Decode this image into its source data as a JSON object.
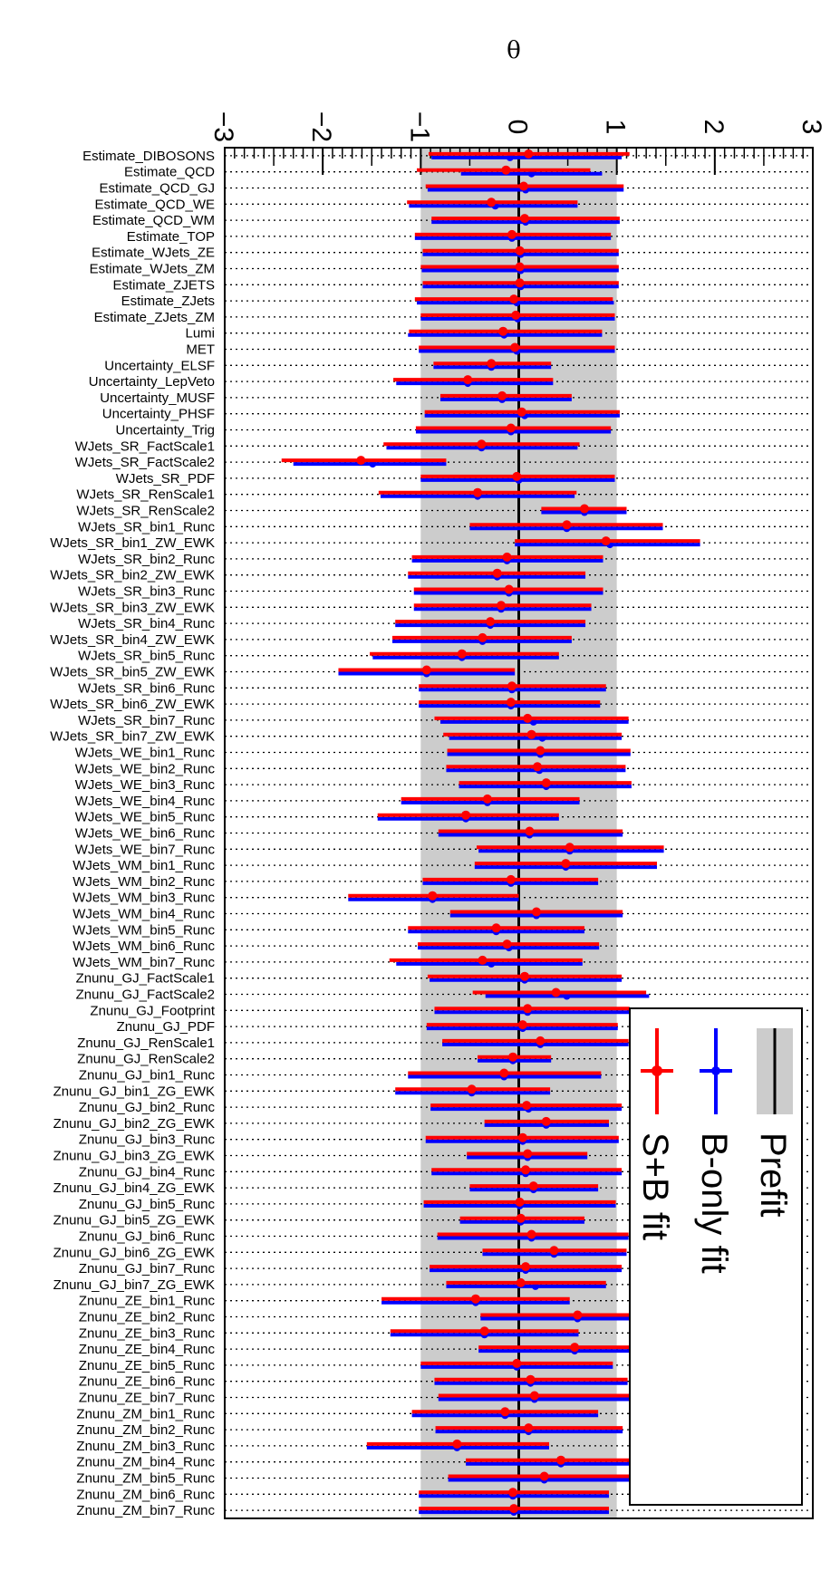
{
  "colors": {
    "prefit_band": "#cccccc",
    "prefit_line": "#000000",
    "bonly": "#0000ff",
    "splusb": "#ff0000"
  },
  "chart_data": {
    "type": "scatter",
    "title": "",
    "xlabel": "θ",
    "ylabel": "",
    "xlim": [
      -3,
      3
    ],
    "xticks": [
      "−3",
      "−2",
      "−1",
      "0",
      "1",
      "2",
      "3"
    ],
    "grid": true,
    "legend": {
      "position": "bottom-right",
      "entries": [
        "Prefit",
        "B-only fit",
        "S+B fit"
      ]
    },
    "prefit": {
      "center": 0,
      "band": [
        -1,
        1
      ]
    },
    "parameters": [
      "Estimate_DIBOSONS",
      "Estimate_QCD",
      "Estimate_QCD_GJ",
      "Estimate_QCD_WE",
      "Estimate_QCD_WM",
      "Estimate_TOP",
      "Estimate_WJets_ZE",
      "Estimate_WJets_ZM",
      "Estimate_ZJETS",
      "Estimate_ZJets",
      "Estimate_ZJets_ZM",
      "Lumi",
      "MET",
      "Uncertainty_ELSF",
      "Uncertainty_LepVeto",
      "Uncertainty_MUSF",
      "Uncertainty_PHSF",
      "Uncertainty_Trig",
      "WJets_SR_FactScale1",
      "WJets_SR_FactScale2",
      "WJets_SR_PDF",
      "WJets_SR_RenScale1",
      "WJets_SR_RenScale2",
      "WJets_SR_bin1_Runc",
      "WJets_SR_bin1_ZW_EWK",
      "WJets_SR_bin2_Runc",
      "WJets_SR_bin2_ZW_EWK",
      "WJets_SR_bin3_Runc",
      "WJets_SR_bin3_ZW_EWK",
      "WJets_SR_bin4_Runc",
      "WJets_SR_bin4_ZW_EWK",
      "WJets_SR_bin5_Runc",
      "WJets_SR_bin5_ZW_EWK",
      "WJets_SR_bin6_Runc",
      "WJets_SR_bin6_ZW_EWK",
      "WJets_SR_bin7_Runc",
      "WJets_SR_bin7_ZW_EWK",
      "WJets_WE_bin1_Runc",
      "WJets_WE_bin2_Runc",
      "WJets_WE_bin3_Runc",
      "WJets_WE_bin4_Runc",
      "WJets_WE_bin5_Runc",
      "WJets_WE_bin6_Runc",
      "WJets_WE_bin7_Runc",
      "WJets_WM_bin1_Runc",
      "WJets_WM_bin2_Runc",
      "WJets_WM_bin3_Runc",
      "WJets_WM_bin4_Runc",
      "WJets_WM_bin5_Runc",
      "WJets_WM_bin6_Runc",
      "WJets_WM_bin7_Runc",
      "Znunu_GJ_FactScale1",
      "Znunu_GJ_FactScale2",
      "Znunu_GJ_Footprint",
      "Znunu_GJ_PDF",
      "Znunu_GJ_RenScale1",
      "Znunu_GJ_RenScale2",
      "Znunu_GJ_bin1_Runc",
      "Znunu_GJ_bin1_ZG_EWK",
      "Znunu_GJ_bin2_Runc",
      "Znunu_GJ_bin2_ZG_EWK",
      "Znunu_GJ_bin3_Runc",
      "Znunu_GJ_bin3_ZG_EWK",
      "Znunu_GJ_bin4_Runc",
      "Znunu_GJ_bin4_ZG_EWK",
      "Znunu_GJ_bin5_Runc",
      "Znunu_GJ_bin5_ZG_EWK",
      "Znunu_GJ_bin6_Runc",
      "Znunu_GJ_bin6_ZG_EWK",
      "Znunu_GJ_bin7_Runc",
      "Znunu_GJ_bin7_ZG_EWK",
      "Znunu_ZE_bin1_Runc",
      "Znunu_ZE_bin2_Runc",
      "Znunu_ZE_bin3_Runc",
      "Znunu_ZE_bin4_Runc",
      "Znunu_ZE_bin5_Runc",
      "Znunu_ZE_bin6_Runc",
      "Znunu_ZE_bin7_Runc",
      "Znunu_ZM_bin1_Runc",
      "Znunu_ZM_bin2_Runc",
      "Znunu_ZM_bin3_Runc",
      "Znunu_ZM_bin4_Runc",
      "Znunu_ZM_bin5_Runc",
      "Znunu_ZM_bin6_Runc",
      "Znunu_ZM_bin7_Runc"
    ],
    "series": [
      {
        "name": "B-only fit",
        "values": [
          [
            -0.09,
            -0.89,
            1.05
          ],
          [
            0.13,
            -0.59,
            0.85
          ],
          [
            0.07,
            -0.93,
            1.07
          ],
          [
            -0.24,
            -1.12,
            0.6
          ],
          [
            0.07,
            -0.89,
            1.03
          ],
          [
            -0.07,
            -1.06,
            0.94
          ],
          [
            0.02,
            -0.98,
            1.02
          ],
          [
            0.02,
            -0.99,
            1.02
          ],
          [
            0.02,
            -0.98,
            1.02
          ],
          [
            -0.02,
            -1.04,
            0.97
          ],
          [
            -0.01,
            -1.0,
            0.98
          ],
          [
            -0.15,
            -1.13,
            0.85
          ],
          [
            -0.02,
            -1.02,
            0.98
          ],
          [
            -0.28,
            -0.87,
            0.33
          ],
          [
            -0.52,
            -1.25,
            0.35
          ],
          [
            -0.17,
            -0.8,
            0.54
          ],
          [
            0.06,
            -0.96,
            1.03
          ],
          [
            -0.08,
            -1.05,
            0.94
          ],
          [
            -0.38,
            -1.35,
            0.6
          ],
          [
            -1.49,
            -2.3,
            -0.74
          ],
          [
            0.0,
            -1.0,
            0.98
          ],
          [
            -0.42,
            -1.41,
            0.57
          ],
          [
            0.67,
            0.23,
            1.1
          ],
          [
            0.49,
            -0.5,
            1.47
          ],
          [
            0.93,
            -0.04,
            1.85
          ],
          [
            -0.12,
            -1.09,
            0.86
          ],
          [
            -0.22,
            -1.13,
            0.68
          ],
          [
            -0.1,
            -1.07,
            0.86
          ],
          [
            -0.18,
            -1.07,
            0.74
          ],
          [
            -0.29,
            -1.26,
            0.68
          ],
          [
            -0.37,
            -1.29,
            0.54
          ],
          [
            -0.58,
            -1.49,
            0.41
          ],
          [
            -0.94,
            -1.84,
            -0.04
          ],
          [
            -0.07,
            -1.02,
            0.89
          ],
          [
            -0.08,
            -1.02,
            0.83
          ],
          [
            0.15,
            -0.8,
            1.12
          ],
          [
            0.24,
            -0.71,
            1.05
          ],
          [
            0.22,
            -0.73,
            1.14
          ],
          [
            0.21,
            -0.74,
            1.09
          ],
          [
            0.28,
            -0.61,
            1.15
          ],
          [
            -0.32,
            -1.2,
            0.62
          ],
          [
            -0.54,
            -1.44,
            0.41
          ],
          [
            0.11,
            -0.82,
            1.06
          ],
          [
            0.52,
            -0.41,
            1.48
          ],
          [
            0.48,
            -0.45,
            1.41
          ],
          [
            -0.08,
            -0.98,
            0.81
          ],
          [
            -0.88,
            -1.74,
            0.0
          ],
          [
            0.18,
            -0.7,
            1.06
          ],
          [
            -0.23,
            -1.13,
            0.67
          ],
          [
            -0.1,
            -1.03,
            0.82
          ],
          [
            -0.28,
            -1.25,
            0.65
          ],
          [
            0.06,
            -0.91,
            1.05
          ],
          [
            0.49,
            -0.34,
            1.33
          ],
          [
            0.09,
            -0.86,
            1.13
          ],
          [
            0.04,
            -0.94,
            1.01
          ],
          [
            0.22,
            -0.78,
            1.12
          ],
          [
            -0.06,
            -0.42,
            0.33
          ],
          [
            -0.15,
            -1.13,
            0.84
          ],
          [
            -0.48,
            -1.26,
            0.32
          ],
          [
            0.1,
            -0.9,
            1.05
          ],
          [
            0.28,
            -0.35,
            0.92
          ],
          [
            0.04,
            -0.95,
            1.02
          ],
          [
            0.09,
            -0.53,
            0.7
          ],
          [
            0.07,
            -0.89,
            1.05
          ],
          [
            0.15,
            -0.5,
            0.81
          ],
          [
            0.01,
            -0.97,
            0.99
          ],
          [
            0.02,
            -0.6,
            0.67
          ],
          [
            0.13,
            -0.83,
            1.12
          ],
          [
            0.36,
            -0.37,
            1.1
          ],
          [
            0.07,
            -0.91,
            1.05
          ],
          [
            0.17,
            -0.74,
            0.89
          ],
          [
            -0.44,
            -1.4,
            0.52
          ],
          [
            0.6,
            -0.39,
            1.17
          ],
          [
            -0.35,
            -1.31,
            0.61
          ],
          [
            0.57,
            -0.41,
            1.15
          ],
          [
            -0.02,
            -1.0,
            0.96
          ],
          [
            0.12,
            -0.86,
            1.11
          ],
          [
            0.16,
            -0.82,
            1.14
          ],
          [
            -0.14,
            -1.09,
            0.81
          ],
          [
            0.1,
            -0.85,
            1.06
          ],
          [
            -0.63,
            -1.55,
            0.31
          ],
          [
            0.43,
            -0.54,
            1.22
          ],
          [
            0.26,
            -0.72,
            1.19
          ],
          [
            -0.06,
            -1.02,
            0.92
          ],
          [
            -0.05,
            -1.02,
            0.92
          ]
        ]
      },
      {
        "name": "S+B fit",
        "values": [
          [
            0.1,
            -0.92,
            1.13
          ],
          [
            -0.13,
            -1.04,
            0.73
          ],
          [
            0.05,
            -0.95,
            1.07
          ],
          [
            -0.28,
            -1.14,
            0.6
          ],
          [
            0.06,
            -0.89,
            1.03
          ],
          [
            -0.07,
            -1.06,
            0.94
          ],
          [
            0.01,
            -0.98,
            1.02
          ],
          [
            0.01,
            -1.0,
            1.02
          ],
          [
            0.01,
            -0.98,
            1.02
          ],
          [
            -0.05,
            -1.06,
            0.96
          ],
          [
            -0.03,
            -1.0,
            0.98
          ],
          [
            -0.16,
            -1.12,
            0.85
          ],
          [
            -0.04,
            -1.02,
            0.98
          ],
          [
            -0.28,
            -0.87,
            0.33
          ],
          [
            -0.52,
            -1.28,
            0.35
          ],
          [
            -0.17,
            -0.8,
            0.54
          ],
          [
            0.03,
            -0.96,
            1.03
          ],
          [
            -0.08,
            -1.05,
            0.94
          ],
          [
            -0.38,
            -1.38,
            0.62
          ],
          [
            -1.61,
            -2.42,
            -0.74
          ],
          [
            -0.02,
            -1.0,
            0.98
          ],
          [
            -0.42,
            -1.43,
            0.59
          ],
          [
            0.67,
            0.23,
            1.1
          ],
          [
            0.49,
            -0.5,
            1.47
          ],
          [
            0.89,
            -0.04,
            1.85
          ],
          [
            -0.12,
            -1.09,
            0.86
          ],
          [
            -0.22,
            -1.13,
            0.68
          ],
          [
            -0.1,
            -1.07,
            0.86
          ],
          [
            -0.18,
            -1.07,
            0.74
          ],
          [
            -0.29,
            -1.26,
            0.68
          ],
          [
            -0.37,
            -1.29,
            0.54
          ],
          [
            -0.58,
            -1.52,
            0.41
          ],
          [
            -0.94,
            -1.84,
            -0.04
          ],
          [
            -0.07,
            -1.02,
            0.89
          ],
          [
            -0.08,
            -1.02,
            0.83
          ],
          [
            0.09,
            -0.86,
            1.12
          ],
          [
            0.13,
            -0.77,
            1.05
          ],
          [
            0.22,
            -0.73,
            1.14
          ],
          [
            0.19,
            -0.74,
            1.09
          ],
          [
            0.28,
            -0.61,
            1.15
          ],
          [
            -0.32,
            -1.2,
            0.62
          ],
          [
            -0.54,
            -1.44,
            0.41
          ],
          [
            0.11,
            -0.82,
            1.06
          ],
          [
            0.52,
            -0.43,
            1.48
          ],
          [
            0.48,
            -0.45,
            1.41
          ],
          [
            -0.08,
            -0.98,
            0.81
          ],
          [
            -0.88,
            -1.74,
            0.0
          ],
          [
            0.18,
            -0.7,
            1.06
          ],
          [
            -0.23,
            -1.13,
            0.67
          ],
          [
            -0.12,
            -1.03,
            0.82
          ],
          [
            -0.37,
            -1.32,
            0.65
          ],
          [
            0.06,
            -0.93,
            1.05
          ],
          [
            0.38,
            -0.47,
            1.3
          ],
          [
            0.09,
            -0.86,
            1.13
          ],
          [
            0.04,
            -0.94,
            1.01
          ],
          [
            0.22,
            -0.78,
            1.12
          ],
          [
            -0.06,
            -0.42,
            0.33
          ],
          [
            -0.15,
            -1.13,
            0.84
          ],
          [
            -0.48,
            -1.26,
            0.32
          ],
          [
            0.08,
            -0.9,
            1.05
          ],
          [
            0.28,
            -0.35,
            0.92
          ],
          [
            0.04,
            -0.95,
            1.02
          ],
          [
            0.09,
            -0.53,
            0.7
          ],
          [
            0.07,
            -0.89,
            1.05
          ],
          [
            0.15,
            -0.5,
            0.81
          ],
          [
            0.01,
            -0.97,
            0.99
          ],
          [
            0.02,
            -0.6,
            0.67
          ],
          [
            0.13,
            -0.83,
            1.12
          ],
          [
            0.36,
            -0.37,
            1.1
          ],
          [
            0.07,
            -0.91,
            1.05
          ],
          [
            0.02,
            -0.74,
            0.89
          ],
          [
            -0.44,
            -1.4,
            0.52
          ],
          [
            0.6,
            -0.39,
            1.17
          ],
          [
            -0.35,
            -1.31,
            0.61
          ],
          [
            0.57,
            -0.41,
            1.15
          ],
          [
            -0.02,
            -1.0,
            0.96
          ],
          [
            0.12,
            -0.86,
            1.11
          ],
          [
            0.16,
            -0.82,
            1.14
          ],
          [
            -0.14,
            -1.09,
            0.81
          ],
          [
            0.1,
            -0.85,
            1.06
          ],
          [
            -0.63,
            -1.55,
            0.31
          ],
          [
            0.43,
            -0.54,
            1.22
          ],
          [
            0.26,
            -0.72,
            1.19
          ],
          [
            -0.06,
            -1.02,
            0.92
          ],
          [
            -0.05,
            -1.02,
            0.92
          ]
        ]
      }
    ]
  }
}
